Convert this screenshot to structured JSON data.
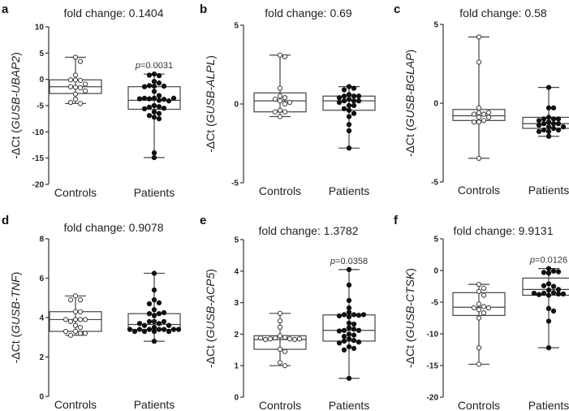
{
  "chart_data": [
    {
      "panel": "a",
      "type": "box",
      "title": "fold change: 0.1404",
      "ylabel_prefix": "-ΔCt (",
      "ylabel_gene": "GUSB-UBAP2",
      "ylabel_suffix": ")",
      "ylim": [
        -20,
        10
      ],
      "yticks": [
        10,
        5,
        0,
        -5,
        -10,
        -15,
        -20
      ],
      "categories": [
        "Controls",
        "Patients"
      ],
      "pvalue": "=0.0031",
      "pvalue_group": "Patients",
      "groups": [
        {
          "name": "Controls",
          "filled": false,
          "min": -4.6,
          "q1": -2.7,
          "median": -1.4,
          "q3": -0.1,
          "max": 4.2,
          "points": [
            4.2,
            3.4,
            0.8,
            -0.1,
            -0.2,
            -0.1,
            -1.5,
            -1.6,
            -1.4,
            -0.9,
            -2.2,
            -2.8,
            -3.8,
            -4.6,
            -4.4
          ]
        },
        {
          "name": "Patients",
          "filled": true,
          "min": -14.9,
          "q1": -5.7,
          "median": -4.0,
          "q3": -1.4,
          "max": 1.0,
          "points": [
            1.0,
            0.7,
            0.8,
            -0.4,
            -0.7,
            -1.3,
            -1.2,
            -1.3,
            -1.4,
            -2.3,
            -3.1,
            -3.6,
            -3.7,
            -3.8,
            -3.6,
            -4.0,
            -4.1,
            -3.7,
            -3.6,
            -5.0,
            -5.2,
            -5.3,
            -5.5,
            -5.6,
            -6.2,
            -6.5,
            -6.9,
            -7.2,
            -7.5,
            -14.0,
            -14.9
          ]
        }
      ]
    },
    {
      "panel": "b",
      "type": "box",
      "title": "fold change: 0.69",
      "ylabel_prefix": "-ΔCt (",
      "ylabel_gene": "GUSB-ALPL",
      "ylabel_suffix": ")",
      "ylim": [
        -5,
        5
      ],
      "yticks": [
        5,
        0,
        -5
      ],
      "categories": [
        "Controls",
        "Patients"
      ],
      "pvalue": "",
      "groups": [
        {
          "name": "Controls",
          "filled": false,
          "min": -0.8,
          "q1": -0.5,
          "median": 0.2,
          "q3": 0.7,
          "max": 3.1,
          "points": [
            3.1,
            3.0,
            1.0,
            0.5,
            0.4,
            0.3,
            0.2,
            0.0,
            0.1,
            -0.4,
            -0.5,
            -0.5,
            -0.8
          ]
        },
        {
          "name": "Patients",
          "filled": true,
          "min": -2.8,
          "q1": -0.4,
          "median": 0.2,
          "q3": 0.5,
          "max": 1.1,
          "points": [
            1.1,
            1.0,
            0.9,
            0.6,
            0.5,
            0.5,
            0.5,
            0.4,
            0.3,
            0.2,
            0.2,
            0.2,
            0.1,
            -0.1,
            -0.1,
            -0.3,
            -0.4,
            -0.6,
            -0.8,
            -1.3,
            -1.7,
            -2.8
          ]
        }
      ]
    },
    {
      "panel": "c",
      "type": "box",
      "title": "fold change: 0.58",
      "ylabel_prefix": "-ΔCt (",
      "ylabel_gene": "GUSB-BGLAP",
      "ylabel_suffix": ")",
      "ylim": [
        -5,
        5
      ],
      "yticks": [
        5,
        0,
        -5
      ],
      "categories": [
        "Controls",
        "Patients"
      ],
      "pvalue": "",
      "groups": [
        {
          "name": "Controls",
          "filled": false,
          "min": -3.5,
          "q1": -1.1,
          "median": -0.8,
          "q3": -0.4,
          "max": 4.2,
          "points": [
            4.2,
            2.6,
            -0.3,
            -0.6,
            -0.7,
            -0.7,
            -0.6,
            -0.9,
            -0.9,
            -1.1,
            -1.2,
            -1.2,
            -3.5
          ]
        },
        {
          "name": "Patients",
          "filled": true,
          "min": -2.1,
          "q1": -1.6,
          "median": -1.3,
          "q3": -0.9,
          "max": 1.0,
          "points": [
            1.0,
            -0.3,
            -0.3,
            -0.9,
            -1.0,
            -1.0,
            -1.0,
            -1.1,
            -1.2,
            -1.3,
            -1.3,
            -1.3,
            -1.4,
            -1.5,
            -1.5,
            -1.6,
            -1.7,
            -1.7,
            -1.8,
            -1.8,
            -2.1
          ]
        }
      ]
    },
    {
      "panel": "d",
      "type": "box",
      "title": "fold change: 0.9078",
      "ylabel_prefix": "-ΔCt (",
      "ylabel_gene": "GUSB-TNF",
      "ylabel_suffix": ")",
      "ylim": [
        0,
        8
      ],
      "yticks": [
        8,
        6,
        4,
        2,
        0
      ],
      "categories": [
        "Controls",
        "Patients"
      ],
      "pvalue": "",
      "groups": [
        {
          "name": "Controls",
          "filled": false,
          "min": 3.1,
          "q1": 3.3,
          "median": 3.9,
          "q3": 4.3,
          "max": 5.1,
          "points": [
            5.1,
            4.9,
            4.9,
            4.3,
            4.3,
            3.9,
            3.9,
            3.8,
            3.9,
            3.9,
            3.6,
            3.5,
            3.3,
            3.2,
            3.1,
            3.2,
            3.3
          ]
        },
        {
          "name": "Patients",
          "filled": true,
          "min": 2.8,
          "q1": 3.4,
          "median": 3.65,
          "q3": 4.2,
          "max": 6.25,
          "points": [
            6.25,
            5.4,
            4.9,
            4.75,
            4.7,
            4.4,
            4.2,
            4.1,
            4.2,
            4.25,
            3.8,
            3.7,
            3.8,
            3.8,
            3.6,
            3.6,
            3.7,
            3.5,
            3.4,
            3.4,
            3.4,
            3.4,
            3.4,
            3.3,
            3.3,
            3.3,
            3.4,
            3.4,
            3.3,
            2.8
          ]
        }
      ]
    },
    {
      "panel": "e",
      "type": "box",
      "title": "fold change: 1.3782",
      "ylabel_prefix": "-ΔCt (",
      "ylabel_gene": "GUSB-ACP5",
      "ylabel_suffix": ")",
      "ylim": [
        0,
        5
      ],
      "yticks": [
        5,
        4,
        3,
        2,
        1,
        0
      ],
      "categories": [
        "Controls",
        "Patients"
      ],
      "pvalue": "=0.0358",
      "pvalue_group": "Patients",
      "groups": [
        {
          "name": "Controls",
          "filled": false,
          "min": 1.0,
          "q1": 1.52,
          "median": 1.83,
          "q3": 1.95,
          "max": 2.66,
          "points": [
            2.66,
            2.42,
            2.22,
            1.95,
            1.9,
            1.88,
            1.85,
            1.85,
            1.83,
            1.83,
            1.85,
            1.88,
            1.52,
            1.45,
            1.1,
            1.0
          ]
        },
        {
          "name": "Patients",
          "filled": true,
          "min": 0.6,
          "q1": 1.78,
          "median": 2.12,
          "q3": 2.61,
          "max": 4.05,
          "points": [
            4.05,
            3.56,
            3.07,
            2.83,
            2.69,
            2.62,
            2.62,
            2.6,
            2.58,
            2.55,
            2.62,
            2.35,
            2.32,
            2.2,
            2.16,
            2.12,
            2.12,
            2.1,
            2.0,
            1.97,
            1.93,
            1.85,
            1.8,
            1.78,
            1.75,
            1.72,
            1.6,
            1.55,
            1.5,
            0.6
          ]
        }
      ]
    },
    {
      "panel": "f",
      "type": "box",
      "title": "fold change: 9.9131",
      "ylabel_prefix": "-ΔCt (",
      "ylabel_gene": "GUSB-CTSK",
      "ylabel_suffix": ")",
      "ylim": [
        -20,
        5
      ],
      "yticks": [
        5,
        0,
        -5,
        -10,
        -15,
        -20
      ],
      "categories": [
        "Controls",
        "Patients"
      ],
      "pvalue": "=0.0126",
      "pvalue_group": "Patients",
      "groups": [
        {
          "name": "Controls",
          "filled": false,
          "min": -14.8,
          "q1": -7.1,
          "median": -5.8,
          "q3": -3.5,
          "max": -2.2,
          "points": [
            -2.2,
            -2.8,
            -3.3,
            -3.9,
            -5.3,
            -5.7,
            -5.9,
            -5.9,
            -6.2,
            -6.7,
            -7.5,
            -12.2,
            -14.8
          ]
        },
        {
          "name": "Patients",
          "filled": true,
          "min": -12.2,
          "q1": -3.9,
          "median": -3.0,
          "q3": -1.2,
          "max": 0.3,
          "points": [
            0.3,
            -0.1,
            -0.3,
            -0.4,
            -0.2,
            -2.1,
            -2.5,
            -2.4,
            -3.1,
            -3.0,
            -3.5,
            -3.6,
            -3.7,
            -3.9,
            -3.8,
            -3.7,
            -3.6,
            -6.0,
            -6.4,
            -8.0,
            -12.2
          ]
        }
      ]
    }
  ]
}
